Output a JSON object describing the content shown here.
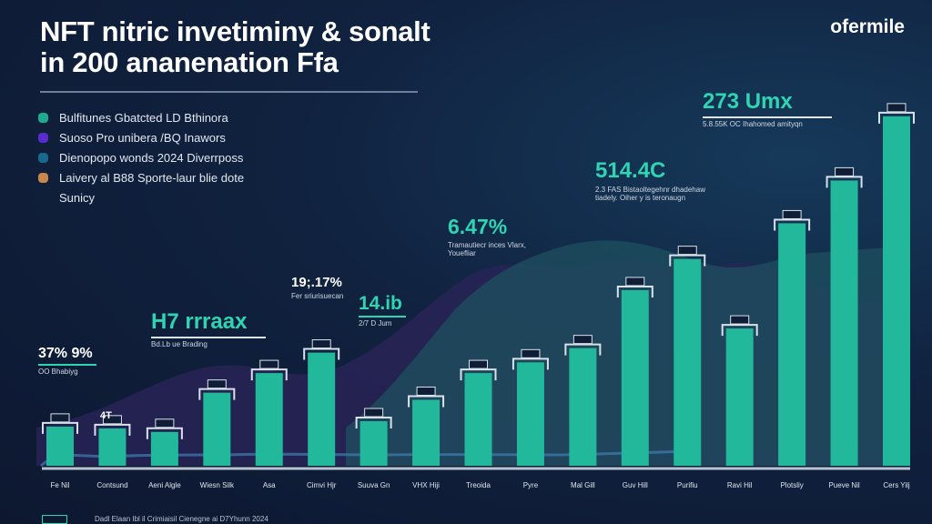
{
  "header": {
    "title_line1": "NFT nitric invetiminy & sonalt",
    "title_line2": "in 200 ananenation Ffa",
    "brand": "ofermile"
  },
  "legend": [
    {
      "label": "Bulfitunes Gbatcted LD Bthinora",
      "color": "#1fa98f"
    },
    {
      "label": "Suoso Pro unibera /BQ Inawors",
      "color": "#5a2bd0"
    },
    {
      "label": "Dienopopo wonds 2024 Diverrposs",
      "color": "#17698e"
    },
    {
      "label": "Laivery al B88 Sporte-laur blie dote",
      "color": "#c9874a"
    },
    {
      "label": "Sunicy",
      "color": ""
    }
  ],
  "annotations": [
    {
      "value": "37% 9%",
      "note": "OO Bhabiyg"
    },
    {
      "value": "H7 rrraax",
      "note": "Bd.Lb ue Brading"
    },
    {
      "value": "19;.17%",
      "note": "Fer sriurisuecan"
    },
    {
      "value": "14.ib",
      "note": "2/7 D Jum"
    },
    {
      "value": "6.47%",
      "note": "Tramautiecr inces Vlarx, Youefliar"
    },
    {
      "value": "514.4C",
      "note": "2.3 FAS Bistaoltegehnr dhadehaw tiadely. Oiher y is teronaugn"
    },
    {
      "value": "273 Umx",
      "note": "5.8.55K OC Ihahomed amityqn"
    }
  ],
  "small_bar_labels": [
    "4T"
  ],
  "footer": {
    "note": "Dadl Elaan Ibl il Crimiaisil Cienegne ai D7Yhunn 2024"
  },
  "colors": {
    "bar": "#22b89c",
    "bar_light": "#35d6b6",
    "outline": "#d8e2ea",
    "area_purple": "#2d2460",
    "area_teal": "#1d4a5c"
  },
  "chart_data": {
    "type": "bar",
    "title": "NFT nitric invetiminy & sonalt in 200 ananenation Ffa",
    "xlabel": "",
    "ylabel": "",
    "ylim": [
      0,
      400
    ],
    "grid": false,
    "legend_position": "top-left",
    "categories": [
      "Fe Nil",
      "Contsund",
      "Aeni Algle",
      "Wiesn Silk",
      "Asa",
      "Cimvi Hjr",
      "Suuva Gn",
      "VHX Hiji",
      "Treoida",
      "Pyre",
      "Mal Gill",
      "Guv Hill",
      "Purifiu",
      "Ravi Hil",
      "Plotsliy",
      "Pueve Nil",
      "Cers Yilj"
    ],
    "values": [
      44,
      42,
      38,
      82,
      104,
      127,
      50,
      74,
      104,
      116,
      132,
      197,
      232,
      154,
      272,
      320,
      392
    ]
  }
}
